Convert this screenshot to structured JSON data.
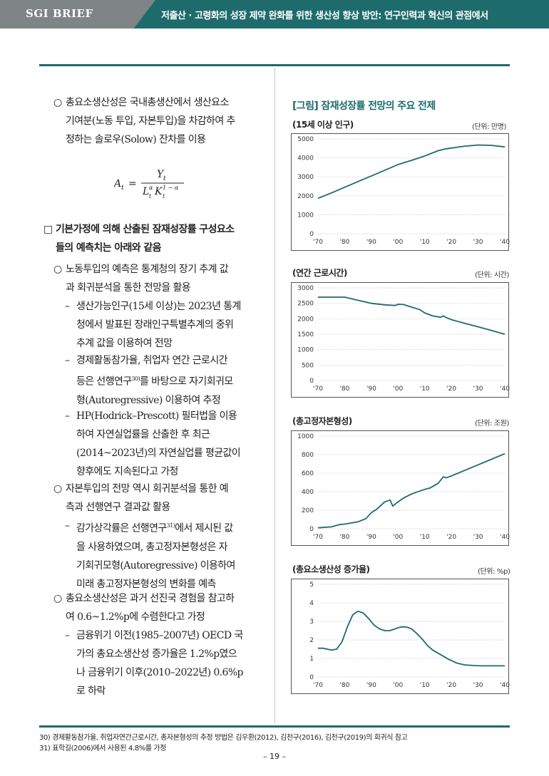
{
  "header": {
    "brand": "SGI BRIEF",
    "title": "저출산 · 고령화의 성장 제약 완화를 위한 생산성 향상 방안: 연구인력과 혁신의 관점에서"
  },
  "left": {
    "tfp_bullet": {
      "mark": "○",
      "lines": [
        "총요소생산성은 국내총생산에서 생산요소",
        "기여분(노동 투입, 자본투입)을 차감하여 추",
        "정하는 솔로우(Solow) 잔차를 이용"
      ]
    },
    "formula": {
      "lhs": "A",
      "lhs_sub": "t",
      "eq": "=",
      "num": "Y",
      "num_sub": "t",
      "den_L": "L",
      "den_L_sup": "α",
      "den_L_sub": "t",
      "den_K": "K",
      "den_K_sup": "1 − α",
      "den_K_sub": "t"
    },
    "heading": {
      "mark": "□",
      "lines": [
        "기본가정에 의해 산출된 잠재성장률 구성요소",
        "들의 예측치는 아래와 같음"
      ]
    },
    "labor_bullet": {
      "mark": "○",
      "lines": [
        "노동투입의 예측은 통계청의 장기 추계 값",
        "과 회귀분석을 통한 전망을 활용"
      ]
    },
    "dash1": {
      "mark": "–",
      "lines": [
        "생산가능인구(15세 이상)는 2023년 통계",
        "청에서 발표된 장래인구특별추계의 중위",
        "추계 값을 이용하여 전망"
      ]
    },
    "dash2": {
      "mark": "–",
      "lines_before_sup": "등은 선행연구",
      "sup": "30)",
      "lines_after_sup": "를 바탕으로 자기회귀모",
      "line1": "경제활동참가율, 취업자 연간 근로시간",
      "line3": "형(Autoregressive) 이용하여 추정"
    },
    "dash3": {
      "mark": "–",
      "lines": [
        "HP(Hodrick–Prescott) 필터법을 이용",
        "하여 자연실업률을 산출한 후 최근",
        "(2014~2023년)의 자연실업률 평균값이",
        "향후에도 지속된다고 가정"
      ]
    },
    "capital_bullet": {
      "mark": "○",
      "lines": [
        "자본투입의 전망 역시 회귀분석을 통한 예",
        "측과 선행연구 결과값 활용"
      ]
    },
    "dash4": {
      "mark": "–",
      "line1_before": "감가상각률은 선행연구",
      "sup": "31)",
      "line1_after": "에서 제시된 값",
      "lines_rest": [
        "을 사용하였으며, 총고정자본형성은 자",
        "기회귀모형(Autoregressive) 이용하여",
        "미래 총고정자본형성의 변화를 예측"
      ]
    },
    "tfp2_bullet": {
      "mark": "○",
      "lines": [
        "총요소생산성은 과거 선진국 경험을 참고하",
        "여 0.6~1.2%p에 수렴한다고 가정"
      ]
    },
    "dash5": {
      "mark": "–",
      "lines": [
        "금융위기 이전(1985–2007년) OECD 국",
        "가의 총요소생산성 증가율은 1.2%p였으",
        "나 금융위기 이후(2010–2022년) 0.6%p",
        "로 하락"
      ]
    }
  },
  "figure": {
    "title": "[그림] 잠재성장률 전망의 주요 전제"
  },
  "chart_data": [
    {
      "type": "line",
      "title": "(15세 이상 인구)",
      "unit": "(단위: 만명)",
      "x_tick_labels": [
        "'70",
        "'80",
        "'90",
        "'00",
        "'10",
        "'20",
        "'30",
        "'40"
      ],
      "x_ticks": [
        1970,
        1980,
        1990,
        2000,
        2010,
        2020,
        2030,
        2040
      ],
      "xlim": [
        1970,
        2040
      ],
      "y_ticks": [
        0,
        1000,
        2000,
        3000,
        4000,
        5000
      ],
      "ylim": [
        0,
        5000
      ],
      "color": "#1e6b6c",
      "x": [
        1970,
        1975,
        1980,
        1985,
        1990,
        1995,
        2000,
        2005,
        2010,
        2015,
        2018,
        2020,
        2025,
        2030,
        2035,
        2040
      ],
      "y": [
        1870,
        2150,
        2450,
        2750,
        3050,
        3350,
        3650,
        3870,
        4100,
        4380,
        4480,
        4520,
        4620,
        4680,
        4660,
        4580
      ]
    },
    {
      "type": "line",
      "title": "(연간 근로시간)",
      "unit": "(단위: 시간)",
      "x_tick_labels": [
        "'70",
        "'80",
        "'90",
        "'00",
        "'10",
        "'20",
        "'30",
        "'40"
      ],
      "x_ticks": [
        1970,
        1980,
        1990,
        2000,
        2010,
        2020,
        2030,
        2040
      ],
      "xlim": [
        1970,
        2040
      ],
      "y_ticks": [
        0,
        500,
        1000,
        1500,
        2000,
        2500,
        3000
      ],
      "ylim": [
        0,
        3000
      ],
      "color": "#1e6b6c",
      "x": [
        1970,
        1975,
        1980,
        1983,
        1986,
        1990,
        1995,
        1999,
        2000,
        2002,
        2005,
        2008,
        2010,
        2013,
        2016,
        2017,
        2018,
        2020,
        2025,
        2030,
        2035,
        2040
      ],
      "y": [
        2700,
        2700,
        2700,
        2640,
        2580,
        2500,
        2450,
        2430,
        2470,
        2460,
        2380,
        2300,
        2190,
        2090,
        2050,
        2090,
        2040,
        1970,
        1850,
        1740,
        1620,
        1500
      ]
    },
    {
      "type": "line",
      "title": "(총고정자본형성)",
      "unit": "(단위: 조원)",
      "x_tick_labels": [
        "'70",
        "'80",
        "'90",
        "'00",
        "'10",
        "'20",
        "'30",
        "'40"
      ],
      "x_ticks": [
        1970,
        1980,
        1990,
        2000,
        2010,
        2020,
        2030,
        2040
      ],
      "xlim": [
        1970,
        2040
      ],
      "y_ticks": [
        0,
        200,
        400,
        600,
        800,
        1000
      ],
      "ylim": [
        0,
        1000
      ],
      "color": "#1e6b6c",
      "x": [
        1970,
        1975,
        1978,
        1980,
        1985,
        1988,
        1990,
        1992,
        1995,
        1997,
        1998,
        2000,
        2002,
        2005,
        2008,
        2010,
        2012,
        2015,
        2017,
        2018,
        2019,
        2020,
        2025,
        2030,
        2035,
        2040
      ],
      "y": [
        10,
        20,
        45,
        50,
        75,
        110,
        175,
        210,
        290,
        310,
        245,
        290,
        330,
        375,
        405,
        425,
        440,
        490,
        560,
        550,
        560,
        570,
        630,
        690,
        750,
        810
      ]
    },
    {
      "type": "line",
      "title": "(총요소생산성 증가율)",
      "unit": "(단위: %p)",
      "x_tick_labels": [
        "'70",
        "'80",
        "'90",
        "'00",
        "'10",
        "'20",
        "'30",
        "'40"
      ],
      "x_ticks": [
        1970,
        1980,
        1990,
        2000,
        2010,
        2020,
        2030,
        2040
      ],
      "xlim": [
        1970,
        2040
      ],
      "y_ticks": [
        0,
        1,
        2,
        3,
        4,
        5
      ],
      "ylim": [
        0,
        5
      ],
      "color": "#1e6b6c",
      "x": [
        1970,
        1972,
        1975,
        1977,
        1979,
        1981,
        1983,
        1985,
        1987,
        1989,
        1991,
        1993,
        1995,
        1997,
        1999,
        2001,
        2003,
        2005,
        2007,
        2009,
        2011,
        2013,
        2016,
        2019,
        2022,
        2025,
        2028,
        2031,
        2035,
        2040
      ],
      "y": [
        1.55,
        1.55,
        1.45,
        1.5,
        1.9,
        2.7,
        3.35,
        3.55,
        3.45,
        3.15,
        2.8,
        2.6,
        2.5,
        2.5,
        2.6,
        2.7,
        2.7,
        2.6,
        2.35,
        2.05,
        1.7,
        1.45,
        1.2,
        0.95,
        0.75,
        0.65,
        0.62,
        0.6,
        0.6,
        0.6
      ]
    }
  ],
  "footnotes": {
    "fn30": "30) 경제활동참가율, 취업자연간근로시간, 총자본형성의 추정 방법은 김우환(2012), 김천구(2016), 김천구(2019)의 회귀식 참고",
    "fn31": "31) 표학길(2006)에서 사용된 4.8%를 가정",
    "page": "– 19 –"
  }
}
